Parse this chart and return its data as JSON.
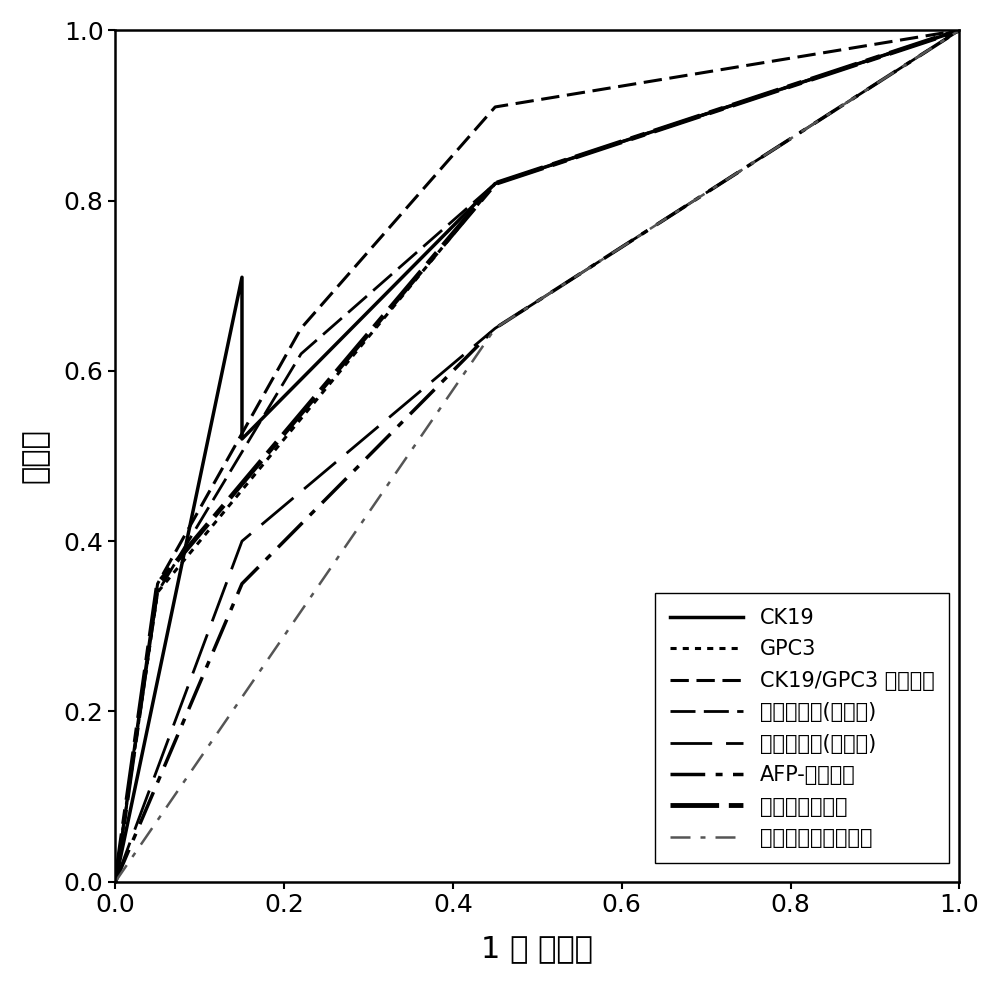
{
  "curves": [
    {
      "label": "CK19",
      "x": [
        0.0,
        0.15,
        0.15,
        0.45,
        1.0
      ],
      "y": [
        0.0,
        0.71,
        0.52,
        0.82,
        1.0
      ],
      "color": "#000000",
      "lw": 2.5,
      "dashes": null
    },
    {
      "label": "GPC3",
      "x": [
        0.0,
        0.05,
        0.45,
        1.0
      ],
      "y": [
        0.0,
        0.34,
        0.82,
        1.0
      ],
      "color": "#000000",
      "lw": 2.2,
      "dashes": [
        2,
        2
      ]
    },
    {
      "label": "CK19/GPC3 表达模式",
      "x": [
        0.0,
        0.05,
        0.22,
        0.45,
        1.0
      ],
      "y": [
        0.0,
        0.35,
        0.65,
        0.91,
        1.0
      ],
      "color": "#000000",
      "lw": 2.2,
      "dashes": [
        6,
        2.5
      ]
    },
    {
      "label": "组织学分级(三分类)",
      "x": [
        0.0,
        0.05,
        0.22,
        0.45,
        1.0
      ],
      "y": [
        0.0,
        0.34,
        0.62,
        0.82,
        1.0
      ],
      "color": "#000000",
      "lw": 2.0,
      "dashes": [
        9,
        3
      ]
    },
    {
      "label": "组织学分类(两分类)",
      "x": [
        0.0,
        0.15,
        0.45,
        1.0
      ],
      "y": [
        0.0,
        0.4,
        0.65,
        1.0
      ],
      "color": "#000000",
      "lw": 2.0,
      "dashes": [
        15,
        5
      ]
    },
    {
      "label": "AFP-阈値分类",
      "x": [
        0.0,
        0.15,
        0.45,
        1.0
      ],
      "y": [
        0.0,
        0.35,
        0.65,
        1.0
      ],
      "color": "#000000",
      "lw": 2.5,
      "dashes": [
        10,
        3,
        2,
        3
      ]
    },
    {
      "label": "新风险评分模型",
      "x": [
        0.0,
        0.05,
        0.22,
        0.45,
        1.0
      ],
      "y": [
        0.0,
        0.35,
        0.55,
        0.82,
        1.0
      ],
      "color": "#000000",
      "lw": 3.5,
      "dashes": [
        10,
        2,
        3,
        2
      ]
    },
    {
      "label": "参考线（米兰标准）",
      "x": [
        0.0,
        0.45,
        1.0
      ],
      "y": [
        0.0,
        0.65,
        1.0
      ],
      "color": "#555555",
      "lw": 1.8,
      "dashes": [
        8,
        4,
        2,
        4
      ]
    }
  ],
  "xlabel": "1 － 特异度",
  "ylabel": "敏感度",
  "xlim": [
    0.0,
    1.0
  ],
  "ylim": [
    0.0,
    1.0
  ],
  "xticks": [
    0.0,
    0.2,
    0.4,
    0.6,
    0.8,
    1.0
  ],
  "yticks": [
    0.0,
    0.2,
    0.4,
    0.6,
    0.8,
    1.0
  ],
  "xlabel_fontsize": 22,
  "ylabel_fontsize": 22,
  "tick_fontsize": 18,
  "legend_fontsize": 15,
  "background_color": "#ffffff"
}
